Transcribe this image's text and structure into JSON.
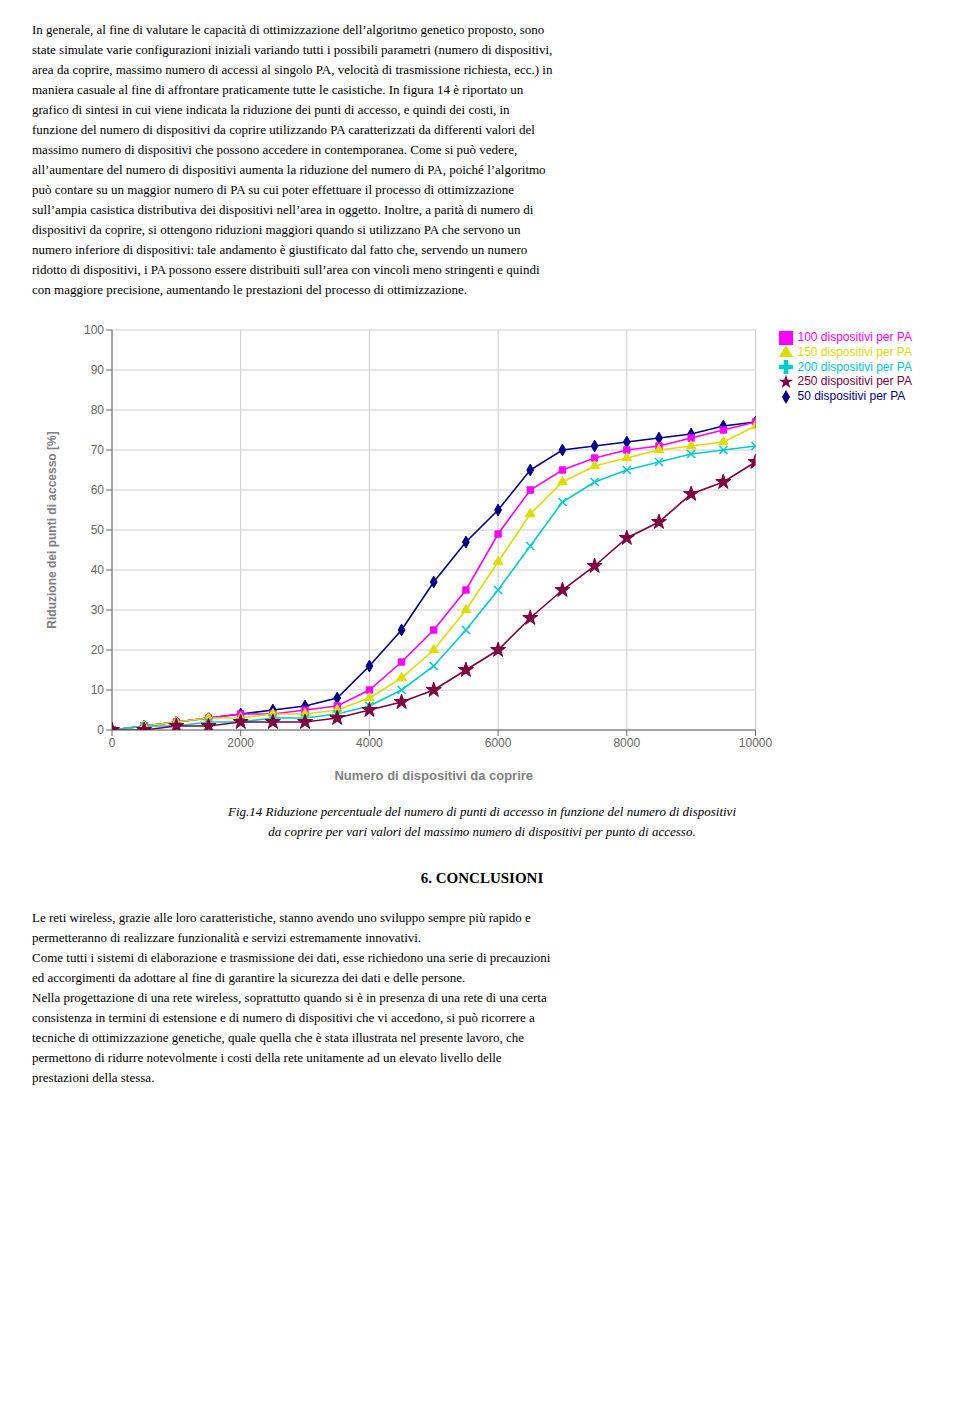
{
  "chart_data": {
    "type": "line",
    "xlabel": "Numero di dispositivi da coprire",
    "ylabel": "Riduzione dei punti di accesso [%]",
    "xlim": [
      0,
      10000
    ],
    "ylim": [
      0,
      100
    ],
    "xticks": [
      0,
      2000,
      4000,
      6000,
      8000,
      10000
    ],
    "yticks": [
      0,
      10,
      20,
      30,
      40,
      50,
      60,
      70,
      80,
      90,
      100
    ],
    "grid": true,
    "legend": "right",
    "x": [
      0,
      500,
      1000,
      1500,
      2000,
      2500,
      3000,
      3500,
      4000,
      4500,
      5000,
      5500,
      6000,
      6500,
      7000,
      7500,
      8000,
      8500,
      9000,
      9500,
      10000
    ],
    "series": [
      {
        "name": "50 dispositivi per PA",
        "color": "#00008B",
        "marker": "diamond",
        "values": [
          0,
          1,
          2,
          3,
          4,
          5,
          6,
          8,
          16,
          25,
          37,
          47,
          55,
          65,
          70,
          71,
          72,
          73,
          74,
          76,
          77
        ]
      },
      {
        "name": "100 dispositivi per PA",
        "color": "#FF00FF",
        "marker": "square",
        "values": [
          0,
          1,
          2,
          3,
          4,
          4,
          5,
          6,
          10,
          17,
          25,
          35,
          49,
          60,
          65,
          68,
          70,
          71,
          73,
          75,
          77
        ]
      },
      {
        "name": "150 dispositivi per PA",
        "color": "#DDDD00",
        "marker": "triangle",
        "values": [
          0,
          1,
          2,
          3,
          3,
          4,
          4,
          5,
          8,
          13,
          20,
          30,
          42,
          54,
          62,
          66,
          68,
          70,
          71,
          72,
          76
        ]
      },
      {
        "name": "200 dispositivi per PA",
        "color": "#00CCCC",
        "marker": "x",
        "values": [
          0,
          1,
          1,
          2,
          2,
          3,
          3,
          4,
          6,
          10,
          16,
          25,
          35,
          46,
          57,
          62,
          65,
          67,
          69,
          70,
          71
        ]
      },
      {
        "name": "250 dispositivi per PA",
        "color": "#800040",
        "marker": "star",
        "values": [
          0,
          0,
          1,
          1,
          2,
          2,
          2,
          3,
          5,
          7,
          10,
          15,
          20,
          28,
          35,
          41,
          48,
          52,
          59,
          62,
          67
        ]
      }
    ],
    "annotations": {
      "above": [
        "In generale, al fine di valutare le capacità di ottimizzazione dell’algoritmo genetico proposto, sono",
        "state simulate varie configurazioni iniziali variando tutti i possibili parametri (numero di dispositivi,",
        "area da coprire, massimo numero di accessi al singolo PA, velocità di trasmissione richiesta, ecc.) in",
        "maniera casuale al fine di affrontare praticamente tutte le casistiche. In figura 14 è riportato un",
        "grafico di sintesi in cui viene indicata la riduzione dei punti di accesso, e quindi dei costi, in",
        "funzione del numero di dispositivi da coprire utilizzando PA caratterizzati da differenti valori del",
        "massimo numero di dispositivi che possono accedere in contemporanea. Come si può vedere,",
        "all’aumentare del numero di dispositivi aumenta la riduzione del numero di PA, poiché l’algoritmo",
        "può contare su un maggior numero di PA su cui poter effettuare il processo di ottimizzazione",
        "sull’ampia casistica distributiva dei dispositivi nell’area in oggetto. Inoltre, a parità di numero di",
        "dispositivi da coprire, si ottengono riduzioni maggiori quando si utilizzano PA che servono un",
        "numero inferiore di dispositivi: tale andamento è giustificato dal fatto che, servendo un numero",
        "ridotto di dispositivi, i PA possono essere distribuiti sull’area con vincoli meno stringenti e quindi",
        "con maggiore precisione, aumentando le prestazioni del processo di ottimizzazione."
      ],
      "caption": [
        "Fig.14 Riduzione percentuale del numero di punti di accesso in funzione del numero di dispositivi",
        "da coprire per vari valori del massimo numero di dispositivi per punto di accesso."
      ],
      "section_title": "6. CONCLUSIONI",
      "below": [
        "Le reti wireless, grazie alle loro caratteristiche, stanno avendo uno sviluppo sempre più rapido e",
        "permetteranno di realizzare funzionalità e servizi estremamente innovativi.",
        "Come tutti i sistemi di elaborazione e trasmissione dei dati, esse richiedono una serie di precauzioni",
        "ed accorgimenti da adottare al fine di garantire la sicurezza dei dati e delle persone.",
        "Nella progettazione di una rete wireless, soprattutto quando si è in presenza di una rete di una certa",
        "consistenza in termini di estensione e di numero di dispositivi che vi accedono, si può ricorrere a",
        "tecniche di ottimizzazione genetiche, quale quella che è stata illustrata nel presente lavoro, che",
        "permettono di ridurre notevolmente i costi della rete unitamente ad un elevato livello delle",
        "prestazioni della stessa."
      ]
    }
  }
}
